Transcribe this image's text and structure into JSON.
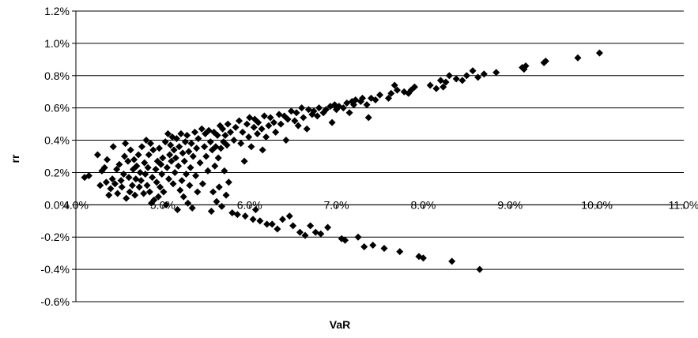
{
  "chart_data": {
    "type": "scatter",
    "title": "",
    "xlabel": "VaR",
    "ylabel": "rr",
    "xlim": [
      0.04,
      0.11
    ],
    "ylim": [
      -0.006,
      0.012
    ],
    "x_ticks": [
      0.04,
      0.05,
      0.06,
      0.07,
      0.08,
      0.09,
      0.1,
      0.11
    ],
    "x_tick_labels": [
      "4.0%",
      "5.0%",
      "6.0%",
      "7.0%",
      "8.0%",
      "9.0%",
      "10.0%",
      "11.0%"
    ],
    "y_ticks": [
      0.012,
      0.01,
      0.008,
      0.006,
      0.004,
      0.002,
      0.0,
      -0.002,
      -0.004,
      -0.006
    ],
    "y_tick_labels": [
      "1.2%",
      "1.0%",
      "0.8%",
      "0.6%",
      "0.4%",
      "0.2%",
      "0.0%",
      "-0.2%",
      "-0.4%",
      "-0.6%"
    ],
    "grid": "horizontal",
    "legend": "none",
    "marker": "diamond",
    "marker_color": "#000000",
    "points": [
      [
        0.041,
        0.0017
      ],
      [
        0.0415,
        0.0018
      ],
      [
        0.0425,
        0.0031
      ],
      [
        0.0428,
        0.0012
      ],
      [
        0.043,
        0.0021
      ],
      [
        0.0433,
        0.0023
      ],
      [
        0.0435,
        0.0014
      ],
      [
        0.0436,
        0.0028
      ],
      [
        0.0438,
        0.0006
      ],
      [
        0.044,
        0.001
      ],
      [
        0.0442,
        0.0016
      ],
      [
        0.0443,
        0.0036
      ],
      [
        0.0445,
        0.0013
      ],
      [
        0.0447,
        0.0022
      ],
      [
        0.0448,
        0.0007
      ],
      [
        0.045,
        0.0025
      ],
      [
        0.0452,
        0.0015
      ],
      [
        0.0453,
        0.0011
      ],
      [
        0.0455,
        0.0019
      ],
      [
        0.0456,
        0.003
      ],
      [
        0.0457,
        0.0038
      ],
      [
        0.0458,
        0.0004
      ],
      [
        0.046,
        0.0027
      ],
      [
        0.0461,
        0.0017
      ],
      [
        0.0462,
        0.0008
      ],
      [
        0.0463,
        0.0034
      ],
      [
        0.0465,
        0.0012
      ],
      [
        0.0466,
        0.0022
      ],
      [
        0.0467,
        0.0028
      ],
      [
        0.0468,
        0.0006
      ],
      [
        0.0469,
        0.0016
      ],
      [
        0.047,
        0.0024
      ],
      [
        0.0472,
        0.0031
      ],
      [
        0.0473,
        0.0011
      ],
      [
        0.0474,
        0.002
      ],
      [
        0.0475,
        0.0015
      ],
      [
        0.0476,
        0.0036
      ],
      [
        0.0478,
        0.0007
      ],
      [
        0.0479,
        0.0026
      ],
      [
        0.048,
        0.0019
      ],
      [
        0.0481,
        0.004
      ],
      [
        0.0482,
        0.0012
      ],
      [
        0.0483,
        0.0023
      ],
      [
        0.0484,
        0.0031
      ],
      [
        0.0485,
        0.0008
      ],
      [
        0.0486,
        0.0038
      ],
      [
        0.0487,
        0.0001
      ],
      [
        0.0488,
        0.0017
      ],
      [
        0.0489,
        0.0034
      ],
      [
        0.049,
        0.0003
      ],
      [
        0.0492,
        0.0022
      ],
      [
        0.0493,
        0.0014
      ],
      [
        0.0494,
        0.0027
      ],
      [
        0.0495,
        0.0005
      ],
      [
        0.0496,
        0.0035
      ],
      [
        0.0497,
        0.0011
      ],
      [
        0.0498,
        0.0025
      ],
      [
        0.0499,
        0.0019
      ],
      [
        0.05,
        0.0029
      ],
      [
        0.0501,
        0.0008
      ],
      [
        0.0503,
        0.0039
      ],
      [
        0.0504,
        0.0
      ],
      [
        0.0505,
        0.0023
      ],
      [
        0.0506,
        0.0044
      ],
      [
        0.0507,
        0.0016
      ],
      [
        0.0508,
        0.0031
      ],
      [
        0.0509,
        0.0037
      ],
      [
        0.051,
        0.0027
      ],
      [
        0.0511,
        0.0042
      ],
      [
        0.0512,
        0.0013
      ],
      [
        0.0513,
        0.0034
      ],
      [
        0.0514,
        0.002
      ],
      [
        0.0515,
        0.0029
      ],
      [
        0.0516,
        0.0041
      ],
      [
        0.0517,
        -0.0003
      ],
      [
        0.0518,
        0.0024
      ],
      [
        0.0519,
        0.0036
      ],
      [
        0.052,
        0.0009
      ],
      [
        0.0521,
        0.0044
      ],
      [
        0.0522,
        0.0015
      ],
      [
        0.0523,
        0.0032
      ],
      [
        0.0524,
        0.0005
      ],
      [
        0.0525,
        0.0027
      ],
      [
        0.0526,
        0.0039
      ],
      [
        0.0527,
        0.0019
      ],
      [
        0.0528,
        0.0043
      ],
      [
        0.0529,
        0.0001
      ],
      [
        0.053,
        0.0033
      ],
      [
        0.0531,
        0.0012
      ],
      [
        0.0532,
        0.0023
      ],
      [
        0.0533,
        0.0038
      ],
      [
        0.0534,
        -0.0002
      ],
      [
        0.0535,
        0.003
      ],
      [
        0.0537,
        0.0045
      ],
      [
        0.0538,
        0.0018
      ],
      [
        0.0539,
        0.0035
      ],
      [
        0.054,
        0.0008
      ],
      [
        0.0541,
        0.0041
      ],
      [
        0.0543,
        0.0026
      ],
      [
        0.0545,
        0.0047
      ],
      [
        0.0546,
        0.0013
      ],
      [
        0.0548,
        0.0036
      ],
      [
        0.0549,
        0.0044
      ],
      [
        0.055,
        0.003
      ],
      [
        0.0552,
        0.0021
      ],
      [
        0.0553,
        0.0046
      ],
      [
        0.0555,
        0.0039
      ],
      [
        0.0556,
        -0.0004
      ],
      [
        0.0557,
        0.0034
      ],
      [
        0.0558,
        0.0008
      ],
      [
        0.0559,
        0.0045
      ],
      [
        0.056,
        0.0024
      ],
      [
        0.0561,
        0.0036
      ],
      [
        0.0562,
        0.0002
      ],
      [
        0.0563,
        0.0043
      ],
      [
        0.0564,
        0.0029
      ],
      [
        0.0565,
        0.0011
      ],
      [
        0.0566,
        0.0049
      ],
      [
        0.0567,
        0.0035
      ],
      [
        0.0568,
        -0.0001
      ],
      [
        0.0569,
        0.0047
      ],
      [
        0.057,
        0.0039
      ],
      [
        0.0571,
        0.0021
      ],
      [
        0.0572,
        0.0043
      ],
      [
        0.0573,
        0.0006
      ],
      [
        0.0574,
        0.0037
      ],
      [
        0.0575,
        0.005
      ],
      [
        0.0576,
        0.0014
      ],
      [
        0.0578,
        0.0045
      ],
      [
        0.058,
        -0.0005
      ],
      [
        0.0582,
        0.004
      ],
      [
        0.0584,
        0.0048
      ],
      [
        0.0586,
        -0.0006
      ],
      [
        0.0588,
        0.0052
      ],
      [
        0.059,
        0.0038
      ],
      [
        0.0592,
        0.0045
      ],
      [
        0.0594,
        0.0027
      ],
      [
        0.0595,
        -0.0007
      ],
      [
        0.0597,
        0.005
      ],
      [
        0.0599,
        0.0042
      ],
      [
        0.06,
        0.0054
      ],
      [
        0.0602,
        0.0036
      ],
      [
        0.0604,
        -0.0009
      ],
      [
        0.0605,
        0.0048
      ],
      [
        0.0606,
        0.0053
      ],
      [
        0.0607,
        -0.0003
      ],
      [
        0.0609,
        0.0044
      ],
      [
        0.061,
        0.0051
      ],
      [
        0.0612,
        -0.001
      ],
      [
        0.0614,
        0.0047
      ],
      [
        0.0615,
        0.0034
      ],
      [
        0.0617,
        0.0055
      ],
      [
        0.0619,
        0.0042
      ],
      [
        0.062,
        -0.0012
      ],
      [
        0.0622,
        0.0049
      ],
      [
        0.0624,
        0.0054
      ],
      [
        0.0626,
        -0.0012
      ],
      [
        0.0628,
        0.0051
      ],
      [
        0.063,
        0.0045
      ],
      [
        0.0632,
        -0.0015
      ],
      [
        0.0634,
        0.0056
      ],
      [
        0.0636,
        0.005
      ],
      [
        0.0638,
        -0.0009
      ],
      [
        0.064,
        0.0055
      ],
      [
        0.0642,
        0.004
      ],
      [
        0.0644,
        0.0053
      ],
      [
        0.0646,
        -0.0007
      ],
      [
        0.0648,
        0.0058
      ],
      [
        0.065,
        -0.0013
      ],
      [
        0.0652,
        0.0052
      ],
      [
        0.0654,
        0.0057
      ],
      [
        0.0656,
        0.0049
      ],
      [
        0.0658,
        -0.0017
      ],
      [
        0.066,
        0.006
      ],
      [
        0.0662,
        0.0054
      ],
      [
        0.0664,
        -0.0019
      ],
      [
        0.0666,
        0.0047
      ],
      [
        0.0668,
        0.0059
      ],
      [
        0.067,
        -0.0013
      ],
      [
        0.0672,
        0.0056
      ],
      [
        0.0674,
        0.0058
      ],
      [
        0.0676,
        -0.0017
      ],
      [
        0.0678,
        0.0055
      ],
      [
        0.068,
        0.006
      ],
      [
        0.0682,
        -0.0018
      ],
      [
        0.0685,
        0.0057
      ],
      [
        0.0688,
        0.0059
      ],
      [
        0.069,
        -0.0014
      ],
      [
        0.0693,
        0.0061
      ],
      [
        0.0695,
        0.0051
      ],
      [
        0.0698,
        0.0062
      ],
      [
        0.07,
        0.0059
      ],
      [
        0.0703,
        0.0061
      ],
      [
        0.0706,
        -0.0021
      ],
      [
        0.0708,
        0.006
      ],
      [
        0.071,
        -0.0022
      ],
      [
        0.0712,
        0.0063
      ],
      [
        0.0715,
        0.0057
      ],
      [
        0.0718,
        0.0064
      ],
      [
        0.072,
        0.0062
      ],
      [
        0.0722,
        0.0065
      ],
      [
        0.0725,
        -0.002
      ],
      [
        0.0728,
        0.0064
      ],
      [
        0.073,
        0.0066
      ],
      [
        0.0732,
        -0.0026
      ],
      [
        0.0735,
        0.0062
      ],
      [
        0.0737,
        0.0054
      ],
      [
        0.074,
        0.0066
      ],
      [
        0.0742,
        -0.0025
      ],
      [
        0.0745,
        0.0065
      ],
      [
        0.075,
        0.0068
      ],
      [
        0.0755,
        -0.0027
      ],
      [
        0.076,
        0.0066
      ],
      [
        0.0763,
        0.0069
      ],
      [
        0.0767,
        0.0074
      ],
      [
        0.077,
        0.0071
      ],
      [
        0.0773,
        -0.0029
      ],
      [
        0.0778,
        0.007
      ],
      [
        0.0783,
        0.0069
      ],
      [
        0.0786,
        0.0071
      ],
      [
        0.079,
        0.0073
      ],
      [
        0.0795,
        -0.0032
      ],
      [
        0.08,
        -0.0033
      ],
      [
        0.0808,
        0.0074
      ],
      [
        0.0815,
        0.0072
      ],
      [
        0.082,
        0.0077
      ],
      [
        0.0823,
        0.0073
      ],
      [
        0.0826,
        0.0076
      ],
      [
        0.083,
        0.008
      ],
      [
        0.0833,
        -0.0035
      ],
      [
        0.0838,
        0.0078
      ],
      [
        0.0845,
        0.0077
      ],
      [
        0.085,
        0.008
      ],
      [
        0.0857,
        0.0083
      ],
      [
        0.0863,
        0.0079
      ],
      [
        0.0865,
        -0.004
      ],
      [
        0.087,
        0.0081
      ],
      [
        0.0884,
        0.0082
      ],
      [
        0.0914,
        0.0085
      ],
      [
        0.0916,
        0.0084
      ],
      [
        0.0918,
        0.0086
      ],
      [
        0.0939,
        0.0088
      ],
      [
        0.0941,
        0.0089
      ],
      [
        0.0978,
        0.0091
      ],
      [
        0.1003,
        0.0094
      ]
    ]
  }
}
